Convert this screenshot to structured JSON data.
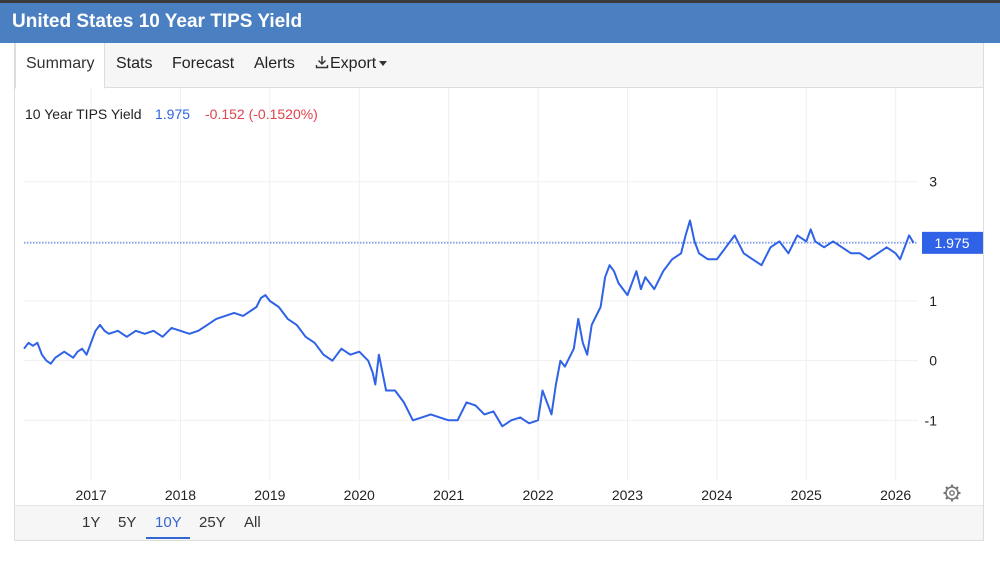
{
  "header": {
    "title": "United States 10 Year TIPS Yield"
  },
  "tabs": [
    {
      "label": "Summary",
      "active": true
    },
    {
      "label": "Stats"
    },
    {
      "label": "Forecast"
    },
    {
      "label": "Alerts"
    },
    {
      "label": "Export"
    }
  ],
  "legend": {
    "name": "10 Year TIPS Yield",
    "value": "1.975",
    "change": "-0.152 (-0.1520%)"
  },
  "price_tag": "1.975",
  "ranges": [
    {
      "label": "1Y"
    },
    {
      "label": "5Y"
    },
    {
      "label": "10Y",
      "active": true
    },
    {
      "label": "25Y"
    },
    {
      "label": "All"
    }
  ],
  "colors": {
    "header": "#4a7fc1",
    "line": "#2f62e6",
    "negative": "#e0434b",
    "accent": "#3466d6"
  },
  "chart_data": {
    "type": "line",
    "title": "United States 10 Year TIPS Yield",
    "series_name": "10 Year TIPS Yield",
    "last_value": 1.975,
    "x_ticks": [
      "2017",
      "2018",
      "2019",
      "2020",
      "2021",
      "2022",
      "2023",
      "2024",
      "2025",
      "2026"
    ],
    "y_ticks": [
      "3",
      "1",
      "0",
      "-1"
    ],
    "x_range": [
      2016.25,
      2026.25
    ],
    "y_range": [
      -2.0,
      3.9
    ],
    "grid": true,
    "x": [
      2016.25,
      2016.3,
      2016.35,
      2016.4,
      2016.45,
      2016.5,
      2016.55,
      2016.6,
      2016.65,
      2016.7,
      2016.75,
      2016.8,
      2016.85,
      2016.9,
      2016.95,
      2017.0,
      2017.05,
      2017.1,
      2017.15,
      2017.2,
      2017.3,
      2017.4,
      2017.5,
      2017.6,
      2017.7,
      2017.8,
      2017.9,
      2018.0,
      2018.1,
      2018.2,
      2018.3,
      2018.4,
      2018.5,
      2018.6,
      2018.7,
      2018.8,
      2018.85,
      2018.9,
      2018.95,
      2019.0,
      2019.1,
      2019.2,
      2019.3,
      2019.4,
      2019.5,
      2019.6,
      2019.7,
      2019.8,
      2019.9,
      2020.0,
      2020.1,
      2020.15,
      2020.18,
      2020.22,
      2020.3,
      2020.4,
      2020.5,
      2020.6,
      2020.7,
      2020.8,
      2020.9,
      2021.0,
      2021.1,
      2021.2,
      2021.3,
      2021.4,
      2021.5,
      2021.6,
      2021.7,
      2021.8,
      2021.9,
      2022.0,
      2022.05,
      2022.1,
      2022.15,
      2022.2,
      2022.25,
      2022.3,
      2022.4,
      2022.45,
      2022.5,
      2022.55,
      2022.6,
      2022.7,
      2022.75,
      2022.8,
      2022.85,
      2022.9,
      2023.0,
      2023.1,
      2023.15,
      2023.2,
      2023.3,
      2023.4,
      2023.5,
      2023.6,
      2023.65,
      2023.7,
      2023.75,
      2023.8,
      2023.9,
      2024.0,
      2024.1,
      2024.2,
      2024.3,
      2024.4,
      2024.5,
      2024.6,
      2024.7,
      2024.8,
      2024.9,
      2025.0,
      2025.05,
      2025.1,
      2025.2,
      2025.3,
      2025.4,
      2025.5,
      2025.6,
      2025.7,
      2025.8,
      2025.9,
      2026.0,
      2026.05,
      2026.1,
      2026.15,
      2026.2
    ],
    "y": [
      0.2,
      0.3,
      0.25,
      0.3,
      0.1,
      0.0,
      -0.05,
      0.05,
      0.1,
      0.15,
      0.1,
      0.05,
      0.15,
      0.2,
      0.1,
      0.3,
      0.5,
      0.6,
      0.5,
      0.45,
      0.5,
      0.4,
      0.5,
      0.45,
      0.5,
      0.4,
      0.55,
      0.5,
      0.45,
      0.5,
      0.6,
      0.7,
      0.75,
      0.8,
      0.75,
      0.85,
      0.9,
      1.05,
      1.1,
      1.0,
      0.9,
      0.7,
      0.6,
      0.4,
      0.3,
      0.1,
      0.0,
      0.2,
      0.1,
      0.15,
      0.0,
      -0.2,
      -0.4,
      0.1,
      -0.5,
      -0.5,
      -0.7,
      -1.0,
      -0.95,
      -0.9,
      -0.95,
      -1.0,
      -1.0,
      -0.7,
      -0.75,
      -0.9,
      -0.85,
      -1.1,
      -1.0,
      -0.95,
      -1.05,
      -1.0,
      -0.5,
      -0.7,
      -0.9,
      -0.4,
      0.0,
      -0.1,
      0.2,
      0.7,
      0.3,
      0.1,
      0.6,
      0.9,
      1.4,
      1.6,
      1.5,
      1.3,
      1.1,
      1.5,
      1.2,
      1.4,
      1.2,
      1.5,
      1.7,
      1.8,
      2.1,
      2.35,
      2.0,
      1.8,
      1.7,
      1.7,
      1.9,
      2.1,
      1.8,
      1.7,
      1.6,
      1.9,
      2.0,
      1.8,
      2.1,
      2.0,
      2.2,
      2.0,
      1.9,
      2.0,
      1.9,
      1.8,
      1.8,
      1.7,
      1.8,
      1.9,
      1.8,
      1.7,
      1.9,
      2.1,
      1.975
    ]
  }
}
